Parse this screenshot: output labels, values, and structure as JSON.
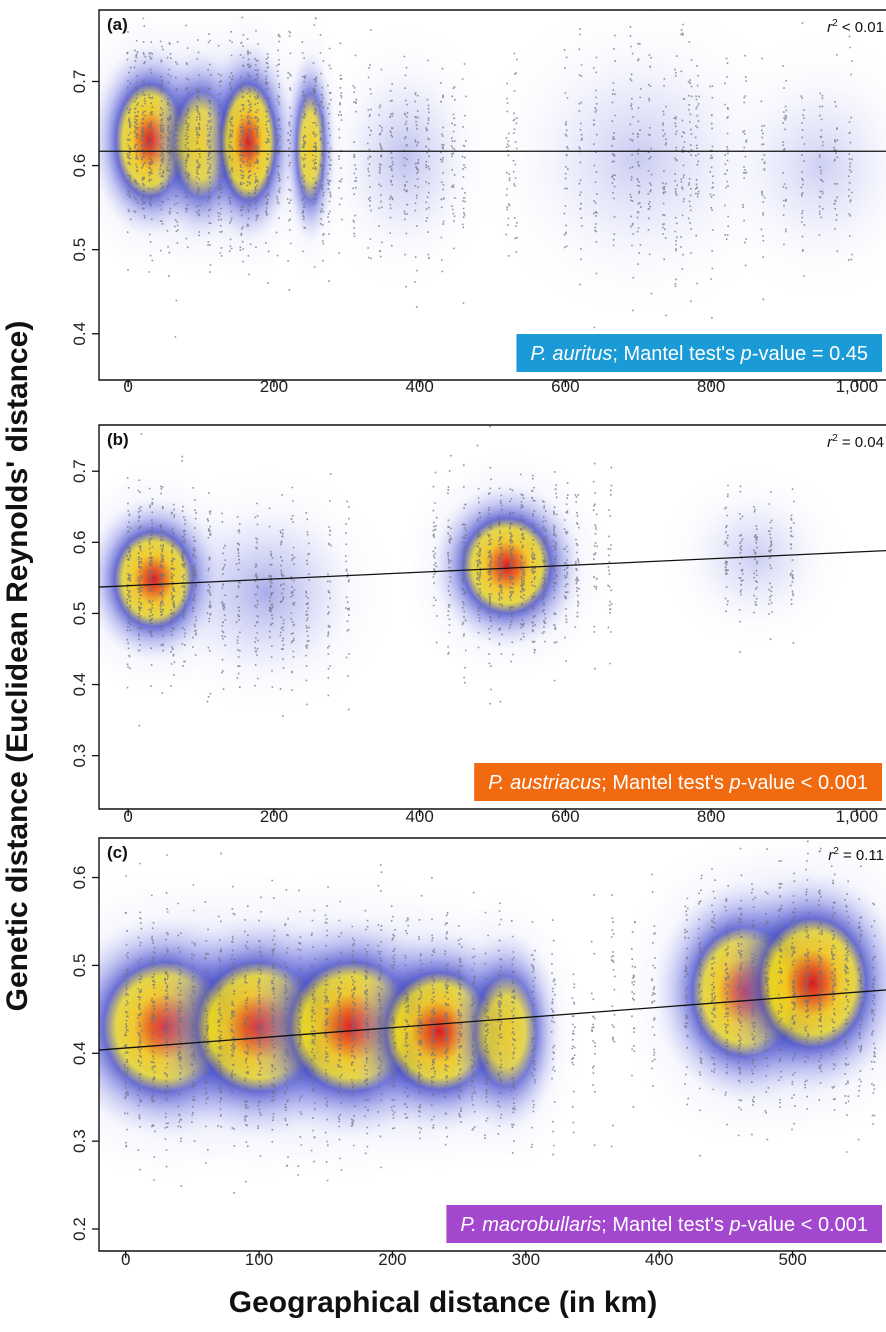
{
  "figure": {
    "ylabel": "Genetic distance (Euclidean Reynolds' distance)",
    "xlabel": "Geographical distance (in km)"
  },
  "chart_data": [
    {
      "type": "scatter",
      "panel": "(a)",
      "species": "P. auritus",
      "legend_rest": "; Mantel test's ",
      "legend_p": "p",
      "legend_value": "-value = 0.45",
      "legend_color": "#1a9ad6",
      "r2_op": " < 0.01",
      "xlim": [
        -40,
        1040
      ],
      "ylim": [
        0.345,
        0.785
      ],
      "xticks": [
        0,
        200,
        400,
        600,
        800,
        1000
      ],
      "xtick_labels": [
        "0",
        "200",
        "400",
        "600",
        "800",
        "1,000"
      ],
      "yticks": [
        0.4,
        0.5,
        0.6,
        0.7
      ],
      "ytick_labels": [
        "0.4",
        "0.5",
        "0.6",
        "0.7"
      ],
      "regression": {
        "intercept": 0.617,
        "slope": 0.0
      },
      "density_clusters": [
        {
          "x": 30,
          "y": 0.63,
          "sx": 35,
          "sy": 0.05,
          "w": 0.95
        },
        {
          "x": 100,
          "y": 0.625,
          "sx": 30,
          "sy": 0.05,
          "w": 0.8
        },
        {
          "x": 165,
          "y": 0.628,
          "sx": 28,
          "sy": 0.052,
          "w": 1.0
        },
        {
          "x": 250,
          "y": 0.622,
          "sx": 15,
          "sy": 0.05,
          "w": 0.75
        },
        {
          "x": 380,
          "y": 0.61,
          "sx": 40,
          "sy": 0.05,
          "w": 0.2
        },
        {
          "x": 700,
          "y": 0.61,
          "sx": 70,
          "sy": 0.06,
          "w": 0.15
        },
        {
          "x": 950,
          "y": 0.6,
          "sx": 50,
          "sy": 0.05,
          "w": 0.08
        }
      ],
      "point_columns": [
        0,
        10,
        20,
        30,
        45,
        55,
        65,
        80,
        95,
        110,
        125,
        140,
        155,
        165,
        175,
        190,
        205,
        220,
        240,
        255,
        265,
        275,
        290,
        310,
        330,
        345,
        360,
        380,
        395,
        410,
        430,
        445,
        460,
        520,
        530,
        600,
        620,
        640,
        665,
        690,
        700,
        715,
        735,
        750,
        760,
        770,
        780,
        800,
        820,
        845,
        870,
        900,
        925,
        950,
        970,
        990
      ]
    },
    {
      "type": "scatter",
      "panel": "(b)",
      "species": "P. austriacus",
      "legend_rest": "; Mantel test's ",
      "legend_p": "p",
      "legend_value": "-value < 0.001",
      "legend_color": "#f26a0f",
      "r2_op": " = 0.04",
      "xlim": [
        -40,
        1040
      ],
      "ylim": [
        0.225,
        0.765
      ],
      "xticks": [
        0,
        200,
        400,
        600,
        800,
        1000
      ],
      "xtick_labels": [
        "0",
        "200",
        "400",
        "600",
        "800",
        "1,000"
      ],
      "yticks": [
        0.3,
        0.4,
        0.5,
        0.6,
        0.7
      ],
      "ytick_labels": [
        "0.3",
        "0.4",
        "0.5",
        "0.6",
        "0.7"
      ],
      "regression": {
        "intercept": 0.539,
        "slope": 4.74e-05
      },
      "density_clusters": [
        {
          "x": 35,
          "y": 0.548,
          "sx": 40,
          "sy": 0.05,
          "w": 1.0
        },
        {
          "x": 190,
          "y": 0.53,
          "sx": 55,
          "sy": 0.055,
          "w": 0.3
        },
        {
          "x": 520,
          "y": 0.567,
          "sx": 45,
          "sy": 0.05,
          "w": 1.0
        },
        {
          "x": 860,
          "y": 0.58,
          "sx": 40,
          "sy": 0.04,
          "w": 0.15
        }
      ],
      "point_columns": [
        0,
        15,
        30,
        45,
        60,
        75,
        90,
        110,
        130,
        150,
        175,
        195,
        210,
        225,
        245,
        275,
        300,
        420,
        440,
        460,
        480,
        495,
        510,
        525,
        540,
        555,
        570,
        585,
        600,
        615,
        640,
        660,
        820,
        840,
        860,
        880,
        910
      ]
    },
    {
      "type": "scatter",
      "panel": "(c)",
      "species": "P. macrobullaris",
      "legend_rest": "; Mantel test's ",
      "legend_p": "p",
      "legend_value": "-value < 0.001",
      "legend_color": "#a347cf",
      "r2_op": " = 0.11",
      "xlim": [
        -20,
        570
      ],
      "ylim": [
        0.175,
        0.645
      ],
      "xticks": [
        0,
        100,
        200,
        300,
        400,
        500
      ],
      "xtick_labels": [
        "0",
        "100",
        "200",
        "300",
        "400",
        "500"
      ],
      "yticks": [
        0.2,
        0.3,
        0.4,
        0.5,
        0.6
      ],
      "ytick_labels": [
        "0.2",
        "0.3",
        "0.4",
        "0.5",
        "0.6"
      ],
      "regression": {
        "intercept": 0.406,
        "slope": 0.000116
      },
      "density_clusters": [
        {
          "x": 30,
          "y": 0.43,
          "sx": 35,
          "sy": 0.055,
          "w": 0.95
        },
        {
          "x": 100,
          "y": 0.43,
          "sx": 35,
          "sy": 0.055,
          "w": 0.95
        },
        {
          "x": 170,
          "y": 0.43,
          "sx": 35,
          "sy": 0.055,
          "w": 0.95
        },
        {
          "x": 235,
          "y": 0.425,
          "sx": 30,
          "sy": 0.05,
          "w": 1.0
        },
        {
          "x": 285,
          "y": 0.425,
          "sx": 18,
          "sy": 0.05,
          "w": 0.7
        },
        {
          "x": 465,
          "y": 0.47,
          "sx": 30,
          "sy": 0.055,
          "w": 0.9
        },
        {
          "x": 515,
          "y": 0.48,
          "sx": 30,
          "sy": 0.055,
          "w": 1.0
        }
      ],
      "point_columns": [
        0,
        10,
        20,
        30,
        40,
        50,
        60,
        70,
        80,
        90,
        100,
        110,
        120,
        130,
        140,
        150,
        160,
        170,
        180,
        190,
        200,
        210,
        220,
        230,
        240,
        250,
        260,
        270,
        280,
        290,
        305,
        320,
        335,
        350,
        365,
        380,
        395,
        420,
        430,
        440,
        450,
        460,
        470,
        480,
        490,
        500,
        510,
        520,
        530,
        540,
        550,
        560
      ]
    }
  ]
}
